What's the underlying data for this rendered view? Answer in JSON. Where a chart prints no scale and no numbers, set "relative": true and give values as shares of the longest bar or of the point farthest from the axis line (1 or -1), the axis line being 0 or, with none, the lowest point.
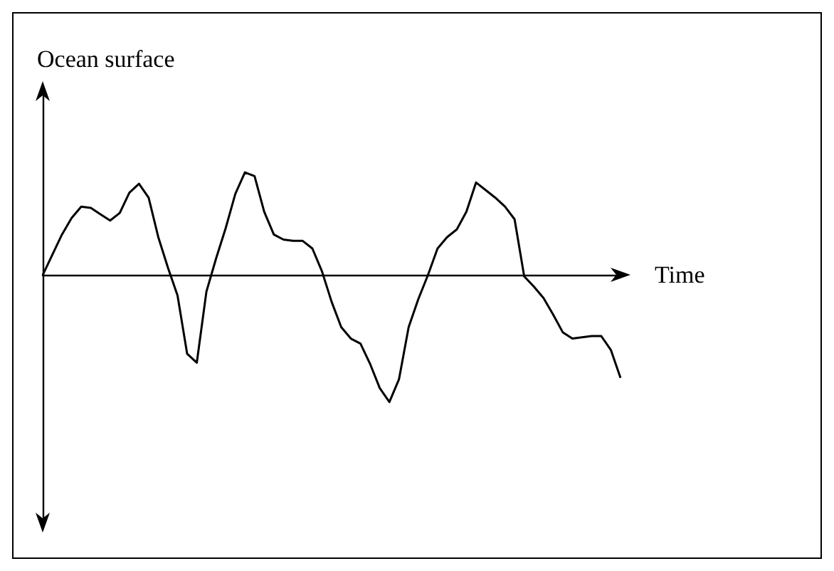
{
  "chart_data": {
    "type": "line",
    "relative": true,
    "ylabel": "Ocean surface",
    "xlabel": "Time",
    "grid": false,
    "marker": "none",
    "line_style": "solid",
    "categories": [
      null,
      null,
      null,
      null,
      null,
      null,
      null,
      null,
      null,
      null,
      null,
      null,
      null,
      null,
      null,
      null,
      null,
      null,
      null,
      null,
      null,
      null,
      null,
      null,
      null,
      null,
      null,
      null,
      null,
      null,
      null,
      null,
      null,
      null,
      null,
      null,
      null,
      null,
      null,
      null,
      null,
      null,
      null,
      null,
      null,
      null,
      null,
      null,
      null,
      null,
      null,
      null,
      null,
      null,
      null,
      null,
      null,
      null,
      null,
      null,
      null
    ],
    "series": [
      {
        "color": "#000000",
        "values": [
          0,
          0.16,
          0.32,
          0.45,
          0.54,
          0.53,
          0.48,
          0.43,
          0.49,
          0.65,
          0.72,
          0.61,
          0.3,
          0.06,
          -0.16,
          -0.62,
          -0.69,
          -0.13,
          0.13,
          0.37,
          0.64,
          0.81,
          0.78,
          0.5,
          0.32,
          0.28,
          0.27,
          0.27,
          0.21,
          0.03,
          -0.21,
          -0.41,
          -0.5,
          -0.54,
          -0.7,
          -0.89,
          -1,
          -0.82,
          -0.41,
          -0.19,
          0,
          0.21,
          0.3,
          0.36,
          0.5,
          0.73,
          0.67,
          0.61,
          0.54,
          0.44,
          -0.01,
          -0.09,
          -0.18,
          -0.31,
          -0.45,
          -0.5,
          -0.49,
          -0.48,
          -0.48,
          -0.59,
          -0.81
        ]
      }
    ]
  }
}
